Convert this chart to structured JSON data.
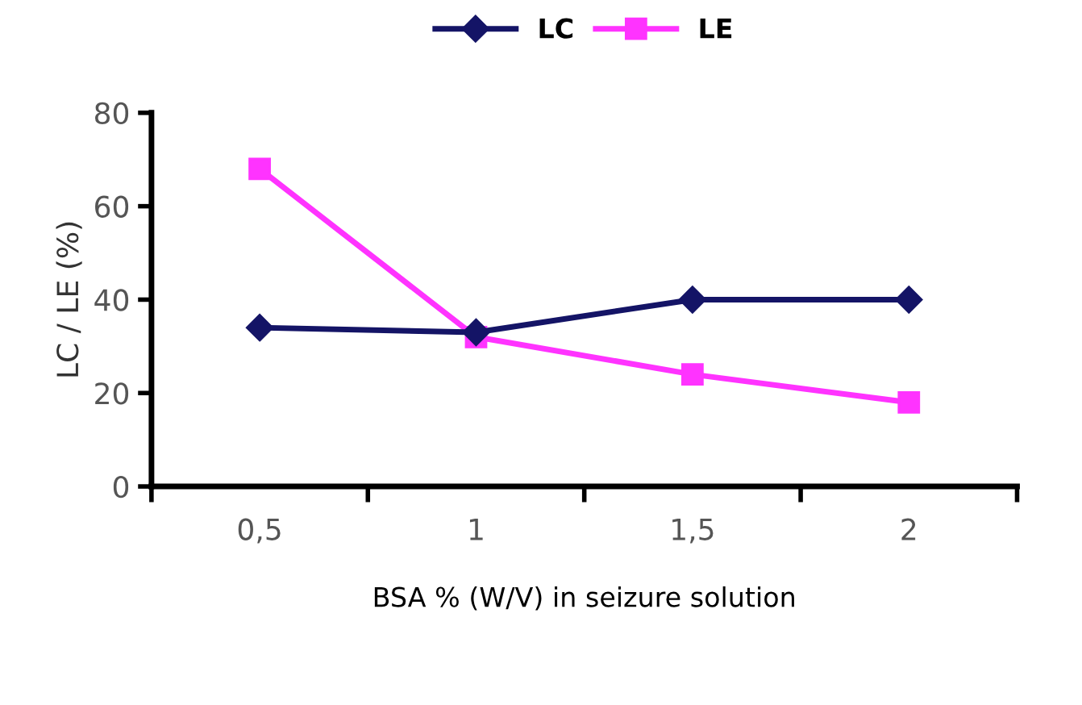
{
  "chart_data": {
    "type": "line",
    "xlabel": "BSA % (W/V) in seizure solution",
    "ylabel": "LC / LE (%)",
    "categories": [
      "0,5",
      "1",
      "1,5",
      "2"
    ],
    "series": [
      {
        "name": "LC",
        "color": "#141466",
        "values": [
          34,
          33,
          40,
          40
        ],
        "marker": "diamond"
      },
      {
        "name": "LE",
        "color": "#ff33ff",
        "values": [
          68,
          32,
          24,
          18
        ],
        "marker": "square"
      }
    ],
    "ylim": [
      0,
      80
    ],
    "yticks": [
      0,
      20,
      40,
      60,
      80
    ],
    "grid": false,
    "legend": "top",
    "line_style": "solid"
  }
}
